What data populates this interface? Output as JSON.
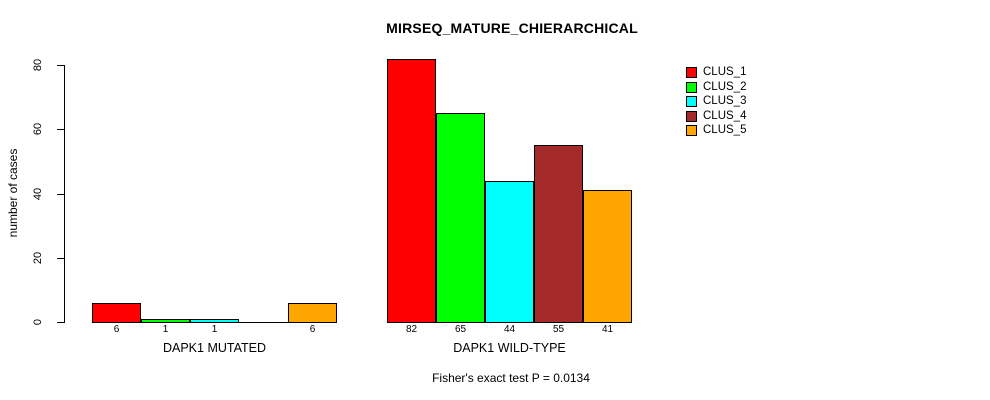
{
  "chart_data": {
    "type": "bar",
    "title": "MIRSEQ_MATURE_CHIERARCHICAL",
    "ylabel": "number of cases",
    "xlabel": "",
    "ylim": [
      0,
      80
    ],
    "y_ticks": [
      0,
      20,
      40,
      60,
      80
    ],
    "grid": "off",
    "legend_position": "top-right",
    "categories": [
      "DAPK1 MUTATED",
      "DAPK1 WILD-TYPE"
    ],
    "series": [
      {
        "name": "CLUS_1",
        "color": "#FF0000",
        "values": [
          6,
          82
        ]
      },
      {
        "name": "CLUS_2",
        "color": "#00FF00",
        "values": [
          1,
          65
        ]
      },
      {
        "name": "CLUS_3",
        "color": "#00FFFF",
        "values": [
          1,
          44
        ]
      },
      {
        "name": "CLUS_4",
        "color": "#A52A2A",
        "values": [
          0,
          55
        ]
      },
      {
        "name": "CLUS_5",
        "color": "#FFA500",
        "values": [
          6,
          41
        ]
      }
    ],
    "bar_value_labels": [
      "6",
      "1",
      "1",
      "",
      "6",
      "82",
      "65",
      "44",
      "55",
      "41"
    ],
    "annotation": "Fisher's exact test P = 0.0134"
  }
}
